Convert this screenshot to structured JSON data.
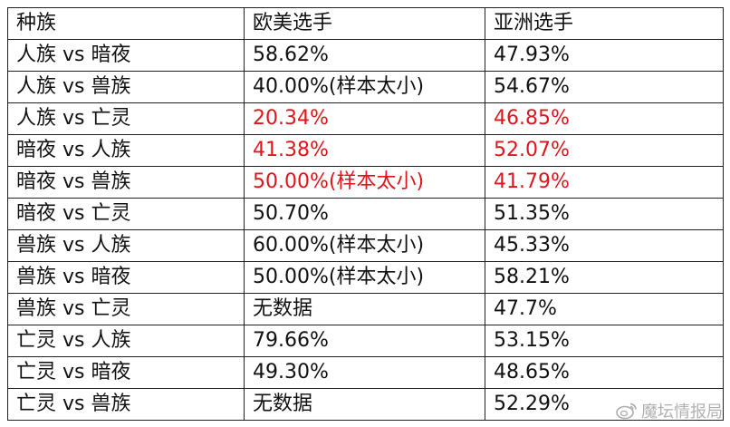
{
  "table": {
    "headers": [
      "种族",
      "欧美选手",
      "亚洲选手"
    ],
    "rows": [
      {
        "matchup": "人族 vs 暗夜",
        "western": "58.62%",
        "asian": "47.93%",
        "highlight": false
      },
      {
        "matchup": "人族 vs 兽族",
        "western": "40.00%(样本太小)",
        "asian": "54.67%",
        "highlight": false
      },
      {
        "matchup": "人族 vs 亡灵",
        "western": "20.34%",
        "asian": "46.85%",
        "highlight": true
      },
      {
        "matchup": "暗夜 vs 人族",
        "western": "41.38%",
        "asian": "52.07%",
        "highlight": true
      },
      {
        "matchup": "暗夜 vs 兽族",
        "western": "50.00%(样本太小)",
        "asian": "41.79%",
        "highlight": true
      },
      {
        "matchup": "暗夜 vs 亡灵",
        "western": "50.70%",
        "asian": "51.35%",
        "highlight": false
      },
      {
        "matchup": "兽族 vs 人族",
        "western": "60.00%(样本太小)",
        "asian": "45.33%",
        "highlight": false
      },
      {
        "matchup": "兽族 vs 暗夜",
        "western": "50.00%(样本太小)",
        "asian": "58.21%",
        "highlight": false
      },
      {
        "matchup": "兽族 vs 亡灵",
        "western": "无数据",
        "asian": "47.7%",
        "highlight": false
      },
      {
        "matchup": "亡灵 vs 人族",
        "western": "79.66%",
        "asian": "53.15%",
        "highlight": false
      },
      {
        "matchup": "亡灵 vs 暗夜",
        "western": "49.30%",
        "asian": "48.65%",
        "highlight": false
      },
      {
        "matchup": "亡灵 vs 兽族",
        "western": "无数据",
        "asian": "52.29%",
        "highlight": false
      }
    ]
  },
  "colors": {
    "highlight_text": "#e0151b",
    "text": "#111111",
    "border": "#222222"
  },
  "watermark": {
    "icon": "weibo-icon",
    "text": "魔坛情报局"
  }
}
